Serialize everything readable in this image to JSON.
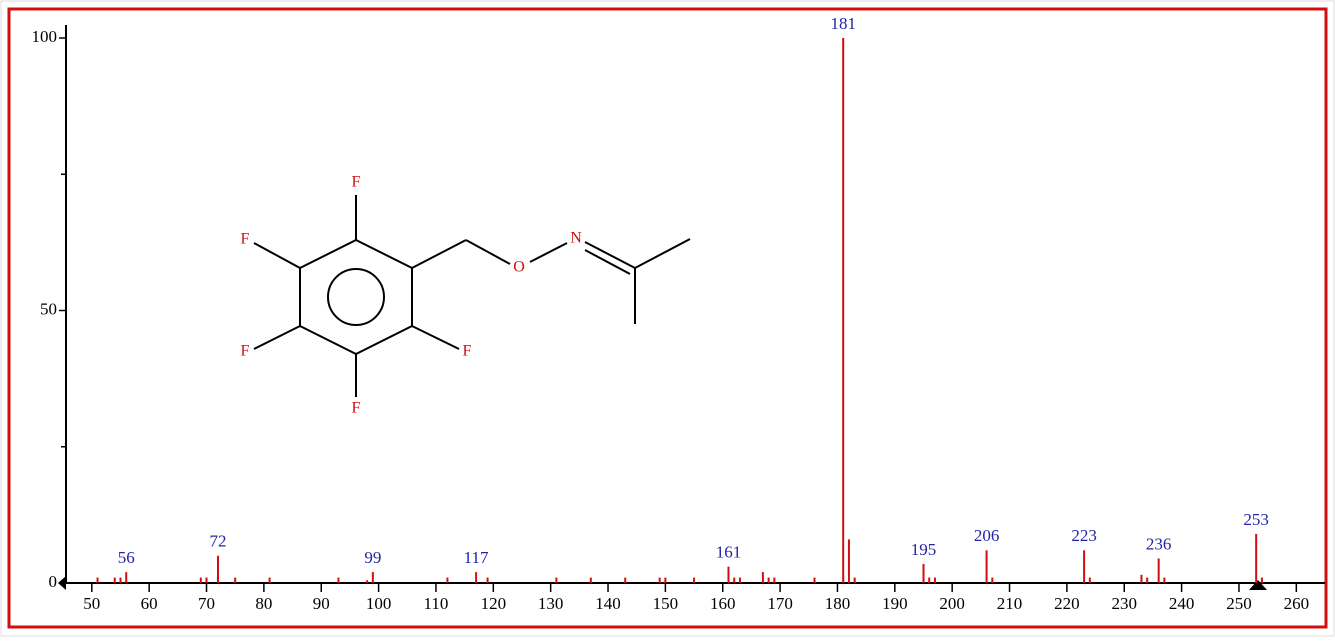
{
  "chart_data": {
    "type": "stem",
    "x": [
      51,
      54,
      55,
      56,
      69,
      70,
      72,
      75,
      81,
      93,
      98,
      99,
      112,
      117,
      119,
      131,
      137,
      143,
      149,
      150,
      155,
      161,
      162,
      163,
      167,
      168,
      169,
      176,
      181,
      182,
      183,
      195,
      196,
      197,
      206,
      207,
      223,
      224,
      233,
      234,
      236,
      237,
      253,
      254
    ],
    "values": [
      1,
      1,
      1,
      2,
      1,
      1,
      5,
      1,
      1,
      1,
      0.5,
      2,
      1,
      2,
      1,
      1,
      1,
      1,
      1,
      1,
      1,
      3,
      1,
      1,
      2,
      1,
      1,
      1,
      100,
      8,
      1,
      3.5,
      1,
      1,
      6,
      1,
      6,
      1,
      1.5,
      1,
      4.5,
      1,
      9,
      1
    ],
    "color": "#d01010",
    "annotations": [
      56,
      72,
      99,
      117,
      161,
      181,
      195,
      206,
      223,
      236,
      253
    ],
    "annotation_color": "#2323a8",
    "xlim": [
      45.5,
      265
    ],
    "xticks": [
      50,
      60,
      70,
      80,
      90,
      100,
      110,
      120,
      130,
      140,
      150,
      160,
      170,
      180,
      190,
      200,
      210,
      220,
      230,
      240,
      250,
      260
    ],
    "ylim": [
      0,
      100
    ],
    "yticks": [
      0,
      50,
      100
    ],
    "y_minor_ticks": [
      25,
      75
    ]
  },
  "structure": {
    "atoms": [
      "F",
      "F",
      "F",
      "F",
      "F",
      "O",
      "N"
    ]
  }
}
